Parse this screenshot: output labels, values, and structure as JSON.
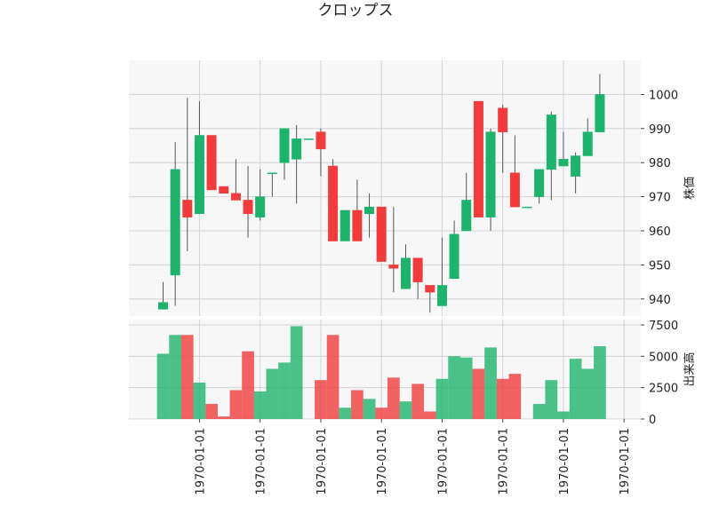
{
  "chart_data": {
    "type": "candlestick",
    "title": "クロップス",
    "price_axis": {
      "label": "株価",
      "ticks": [
        940,
        950,
        960,
        970,
        980,
        990,
        1000
      ],
      "ylim": [
        935,
        1010
      ]
    },
    "volume_axis": {
      "label": "出来高",
      "ticks": [
        "0",
        "2500",
        "5000",
        "7500"
      ],
      "tick_values": [
        0,
        2500,
        5000,
        7500
      ],
      "ylim": [
        0,
        7500
      ]
    },
    "x_tick_labels": [
      "1970-01-01",
      "1970-01-01",
      "1970-01-01",
      "1970-01-01",
      "1970-01-01",
      "1970-01-01",
      "1970-01-01",
      "1970-01-01"
    ],
    "x_tick_positions": [
      3,
      8,
      13,
      18,
      23,
      28,
      33,
      38
    ],
    "up_color": "#1db36c",
    "down_color": "#f03c3c",
    "grid": true,
    "candles": [
      {
        "open": 937,
        "high": 945,
        "low": 937,
        "close": 939,
        "volume": 5200
      },
      {
        "open": 947,
        "high": 986,
        "low": 938,
        "close": 978,
        "volume": 6700
      },
      {
        "open": 969,
        "high": 999,
        "low": 954,
        "close": 964,
        "volume": 6700
      },
      {
        "open": 965,
        "high": 998,
        "low": 965,
        "close": 988,
        "volume": 2900
      },
      {
        "open": 988,
        "high": 988,
        "low": 972,
        "close": 972,
        "volume": 1200
      },
      {
        "open": 973,
        "high": 973,
        "low": 971,
        "close": 971,
        "volume": 200
      },
      {
        "open": 971,
        "high": 981,
        "low": 969,
        "close": 969,
        "volume": 2300
      },
      {
        "open": 969,
        "high": 979,
        "low": 958,
        "close": 965,
        "volume": 5400
      },
      {
        "open": 964,
        "high": 978,
        "low": 963,
        "close": 970,
        "volume": 2200
      },
      {
        "open": 977,
        "high": 977,
        "low": 970,
        "close": 977,
        "volume": 4000
      },
      {
        "open": 980,
        "high": 990,
        "low": 975,
        "close": 990,
        "volume": 4500
      },
      {
        "open": 981,
        "high": 991,
        "low": 968,
        "close": 987,
        "volume": 7400
      },
      {
        "open": 987,
        "high": 987,
        "low": 987,
        "close": 987,
        "volume": 0
      },
      {
        "open": 989,
        "high": 990,
        "low": 976,
        "close": 984,
        "volume": 3100
      },
      {
        "open": 979,
        "high": 981,
        "low": 957,
        "close": 957,
        "volume": 6700
      },
      {
        "open": 957,
        "high": 966,
        "low": 957,
        "close": 966,
        "volume": 900
      },
      {
        "open": 966,
        "high": 975,
        "low": 957,
        "close": 957,
        "volume": 2300
      },
      {
        "open": 965,
        "high": 971,
        "low": 958,
        "close": 967,
        "volume": 1600
      },
      {
        "open": 967,
        "high": 967,
        "low": 951,
        "close": 951,
        "volume": 900
      },
      {
        "open": 950,
        "high": 967,
        "low": 942,
        "close": 949,
        "volume": 3300
      },
      {
        "open": 943,
        "high": 956,
        "low": 943,
        "close": 952,
        "volume": 1400
      },
      {
        "open": 952,
        "high": 952,
        "low": 940,
        "close": 945,
        "volume": 2800
      },
      {
        "open": 944,
        "high": 944,
        "low": 936,
        "close": 942,
        "volume": 600
      },
      {
        "open": 938,
        "high": 958,
        "low": 938,
        "close": 944,
        "volume": 3200
      },
      {
        "open": 946,
        "high": 963,
        "low": 946,
        "close": 959,
        "volume": 5000
      },
      {
        "open": 960,
        "high": 977,
        "low": 960,
        "close": 969,
        "volume": 4900
      },
      {
        "open": 998,
        "high": 998,
        "low": 964,
        "close": 964,
        "volume": 4000
      },
      {
        "open": 964,
        "high": 990,
        "low": 960,
        "close": 989,
        "volume": 5700
      },
      {
        "open": 996,
        "high": 997,
        "low": 977,
        "close": 989,
        "volume": 3200
      },
      {
        "open": 977,
        "high": 988,
        "low": 967,
        "close": 967,
        "volume": 3600
      },
      {
        "open": 967,
        "high": 967,
        "low": 967,
        "close": 967,
        "volume": 0
      },
      {
        "open": 970,
        "high": 978,
        "low": 968,
        "close": 978,
        "volume": 1200
      },
      {
        "open": 978,
        "high": 995,
        "low": 969,
        "close": 994,
        "volume": 3100
      },
      {
        "open": 979,
        "high": 989,
        "low": 979,
        "close": 981,
        "volume": 600
      },
      {
        "open": 976,
        "high": 983,
        "low": 971,
        "close": 982,
        "volume": 4800
      },
      {
        "open": 982,
        "high": 993,
        "low": 982,
        "close": 989,
        "volume": 4000
      },
      {
        "open": 989,
        "high": 1006,
        "low": 989,
        "close": 1000,
        "volume": 5800
      }
    ]
  }
}
